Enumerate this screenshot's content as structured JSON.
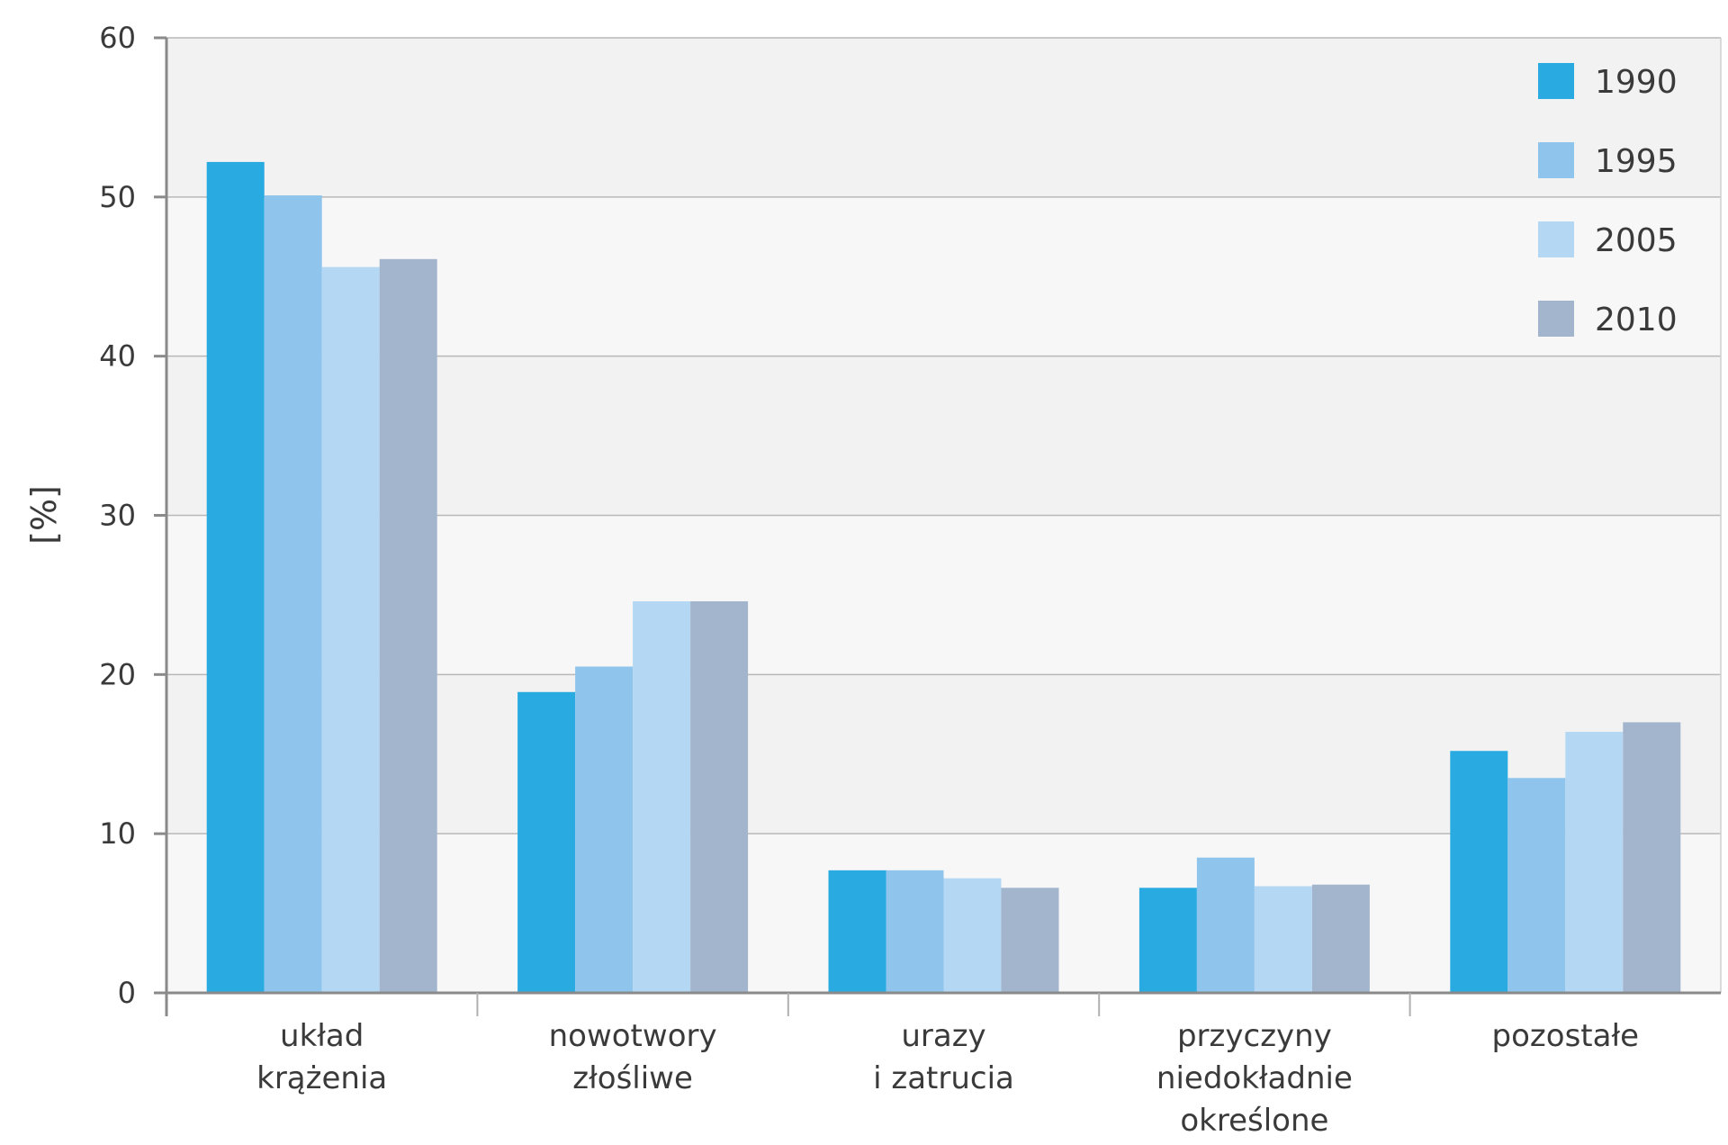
{
  "chart_data": {
    "type": "bar",
    "title": "",
    "xlabel": "",
    "ylabel": "[%]",
    "ylim": [
      0,
      60
    ],
    "yticks": [
      "0",
      "10",
      "20",
      "30",
      "40",
      "50",
      "60"
    ],
    "grid": true,
    "legend_position": "top-right",
    "categories": [
      [
        "układ",
        "krążenia"
      ],
      [
        "nowotwory",
        "złośliwe"
      ],
      [
        "urazy",
        "i zatrucia"
      ],
      [
        "przyczyny",
        "niedokładnie",
        "określone"
      ],
      [
        "pozostałe"
      ]
    ],
    "series": [
      {
        "name": "1990",
        "color": "#29abe2",
        "values": [
          52.2,
          18.9,
          7.7,
          6.6,
          15.2
        ]
      },
      {
        "name": "1995",
        "color": "#8fc5ec",
        "values": [
          50.1,
          20.5,
          7.7,
          8.5,
          13.5
        ]
      },
      {
        "name": "2005",
        "color": "#b4d8f3",
        "values": [
          45.6,
          24.6,
          7.2,
          6.7,
          16.4
        ]
      },
      {
        "name": "2010",
        "color": "#a3b5cd",
        "values": [
          46.1,
          24.6,
          6.6,
          6.8,
          17.0
        ]
      }
    ]
  }
}
